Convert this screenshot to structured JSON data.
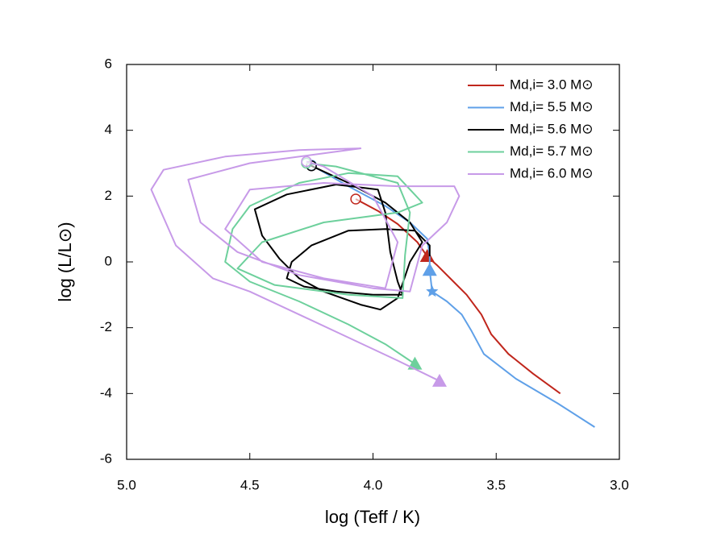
{
  "chart_data": {
    "type": "line",
    "xlabel": "log (Teff / K)",
    "ylabel": "log (L/L⊙)",
    "xlim": [
      5.0,
      3.0
    ],
    "ylim": [
      -6,
      6
    ],
    "xticks": [
      {
        "value": 5.0,
        "label": "5.0"
      },
      4.5,
      {
        "value": 4.0,
        "label": "4.0"
      },
      3.5,
      {
        "value": 3.0,
        "label": "3.0"
      }
    ],
    "yticks": [
      6,
      4,
      2,
      0,
      -2,
      -4,
      -6
    ],
    "legend": "upper right",
    "series": [
      {
        "name": "Md,i= 3.0 M⊙",
        "color": "#c0261c",
        "x": [
          3.24,
          3.35,
          3.45,
          3.52,
          3.56,
          3.62,
          3.68,
          3.74,
          3.78,
          3.82,
          3.9,
          3.98,
          4.07
        ],
        "values": [
          -4.0,
          -3.4,
          -2.8,
          -2.2,
          -1.6,
          -1.0,
          -0.55,
          -0.1,
          0.17,
          0.6,
          1.15,
          1.55,
          1.91
        ],
        "markers": [
          {
            "x": 3.78,
            "y": 0.17,
            "shape": "triangle"
          },
          {
            "x": 4.07,
            "y": 1.91,
            "shape": "circle"
          }
        ]
      },
      {
        "name": "Md,i= 5.5 M⊙",
        "color": "#5fa0e8",
        "x": [
          3.1,
          3.25,
          3.42,
          3.55,
          3.6,
          3.64,
          3.7,
          3.76,
          3.77,
          3.77,
          3.78,
          3.85,
          3.95,
          4.1,
          4.25
        ],
        "values": [
          -5.02,
          -4.3,
          -3.55,
          -2.8,
          -2.1,
          -1.6,
          -1.2,
          -0.9,
          -0.25,
          0.2,
          0.7,
          1.2,
          1.7,
          2.3,
          2.94
        ],
        "markers": [
          {
            "x": 3.76,
            "y": -0.9,
            "shape": "star"
          },
          {
            "x": 3.77,
            "y": -0.25,
            "shape": "triangle"
          },
          {
            "x": 4.25,
            "y": 2.94,
            "shape": "circle"
          }
        ]
      },
      {
        "name": "Md,i= 5.6 M⊙",
        "color": "#000000",
        "x": [
          3.77,
          3.77,
          3.83,
          3.95,
          4.1,
          4.25,
          4.33,
          4.35,
          4.28,
          4.15,
          4.0,
          3.88,
          3.9,
          3.93,
          3.95,
          3.98,
          4.15,
          4.35,
          4.48,
          4.45,
          4.38,
          4.3,
          4.2,
          4.05,
          3.97,
          3.9,
          3.85,
          3.8,
          3.85,
          3.95,
          4.1,
          4.25
        ],
        "values": [
          0.17,
          0.5,
          0.95,
          1.0,
          0.95,
          0.5,
          0.0,
          -0.5,
          -0.75,
          -0.9,
          -1.0,
          -1.0,
          -0.6,
          0.3,
          1.5,
          2.2,
          2.35,
          2.05,
          1.6,
          0.8,
          0.1,
          -0.5,
          -0.9,
          -1.3,
          -1.45,
          -1.1,
          0.0,
          0.6,
          1.2,
          1.8,
          2.4,
          2.92
        ],
        "markers": [
          {
            "x": 4.25,
            "y": 2.92,
            "shape": "circle"
          }
        ]
      },
      {
        "name": "Md,i= 5.7 M⊙",
        "color": "#6dd09c",
        "x": [
          3.83,
          3.95,
          4.1,
          4.3,
          4.5,
          4.6,
          4.57,
          4.5,
          4.3,
          4.1,
          3.9,
          3.8,
          3.9,
          4.2,
          4.45,
          4.55,
          4.4,
          4.1,
          3.88,
          3.87,
          3.85,
          3.9,
          4.15,
          4.27
        ],
        "values": [
          -3.1,
          -2.5,
          -1.9,
          -1.2,
          -0.6,
          0.0,
          1.0,
          1.7,
          2.4,
          2.7,
          2.6,
          1.8,
          1.5,
          1.2,
          0.6,
          -0.2,
          -0.7,
          -1.0,
          -1.1,
          0.2,
          1.5,
          2.4,
          2.9,
          3.0
        ],
        "markers": [
          {
            "x": 3.83,
            "y": -3.1,
            "shape": "triangle"
          },
          {
            "x": 4.27,
            "y": 3.0,
            "shape": "circle"
          }
        ]
      },
      {
        "name": "Md,i= 6.0 M⊙",
        "color": "#c79ae8",
        "x": [
          3.73,
          3.9,
          4.1,
          4.3,
          4.5,
          4.65,
          4.8,
          4.9,
          4.85,
          4.6,
          4.3,
          4.05,
          4.2,
          4.5,
          4.75,
          4.7,
          4.55,
          4.3,
          4.0,
          3.85,
          3.8,
          3.7,
          3.65,
          3.67,
          3.9,
          4.2,
          4.5,
          4.6,
          4.45,
          4.2,
          3.95,
          3.9,
          4.0,
          4.2,
          4.27
        ],
        "values": [
          -3.62,
          -3.0,
          -2.3,
          -1.6,
          -0.9,
          -0.5,
          0.5,
          2.2,
          2.8,
          3.2,
          3.4,
          3.45,
          3.3,
          3.0,
          2.5,
          1.2,
          0.3,
          -0.4,
          -0.8,
          -0.9,
          0.5,
          1.2,
          2.0,
          2.3,
          2.3,
          2.4,
          2.2,
          1.0,
          0.0,
          -0.5,
          -0.8,
          0.6,
          2.0,
          2.9,
          3.05
        ],
        "markers": [
          {
            "x": 3.73,
            "y": -3.62,
            "shape": "triangle"
          },
          {
            "x": 4.27,
            "y": 3.05,
            "shape": "circle"
          }
        ]
      }
    ]
  }
}
